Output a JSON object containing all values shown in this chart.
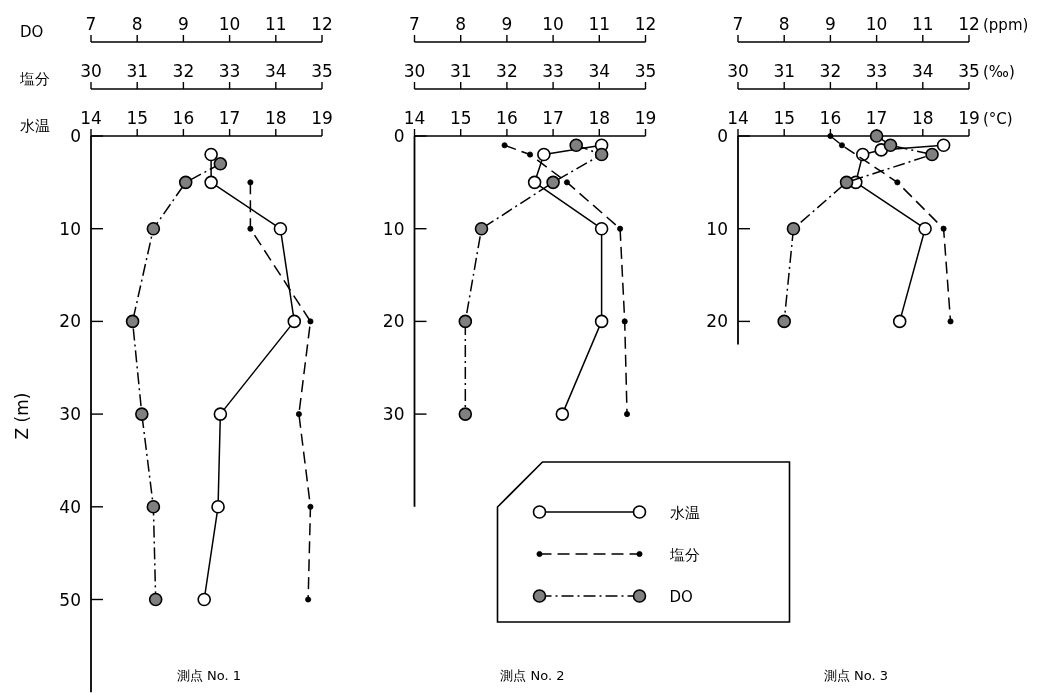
{
  "chart_data": [
    {
      "type": "line",
      "title": "測点 No. 1",
      "ylabel": "Z (m)",
      "xlabel": "水温",
      "x2label": "塩分",
      "xlim": [
        14,
        19
      ],
      "xticks": [
        14,
        15,
        16,
        17,
        18,
        19
      ],
      "x2lim": [
        30,
        35
      ],
      "x2ticks": [
        30,
        31,
        32,
        33,
        34,
        35
      ],
      "ylim": [
        60,
        0
      ],
      "yticks": [
        0,
        10,
        20,
        30,
        40,
        50
      ],
      "series": [
        {
          "marker": "circle",
          "line_style": "solid",
          "color": "#ffffff",
          "x": [
            16.6,
            16.6,
            18.1,
            18.4,
            16.8,
            16.75,
            16.45
          ],
          "values": [
            2,
            5,
            10,
            20,
            30,
            40,
            50
          ]
        },
        {
          "axis": "x2",
          "marker": "circle",
          "line_style": "dashed",
          "color": "#000000",
          "x": [
            33.45,
            33.45,
            34.75,
            34.5,
            34.75,
            34.7
          ],
          "values": [
            5,
            10,
            20,
            30,
            40,
            50
          ]
        }
      ]
    },
    {
      "type": "line",
      "xlabel": "DO",
      "tick_labels": "x",
      "xlim": [
        7,
        12
      ],
      "xticks": [
        7,
        8,
        9,
        10,
        11,
        12
      ],
      "ylim": [
        60,
        0
      ],
      "series": [
        {
          "marker": "circle",
          "line_style": "dashdot",
          "color": "#808080",
          "x": [
            9.8,
            9.05,
            8.35,
            7.9,
            8.1,
            8.35,
            8.4
          ],
          "values": [
            3,
            5,
            10,
            20,
            30,
            40,
            50
          ]
        }
      ]
    },
    {
      "type": "line",
      "title": "測点 No. 2",
      "legend": "bottom right",
      "xlim": [
        14,
        19
      ],
      "xticks": [
        14,
        15,
        16,
        17,
        18,
        19
      ],
      "x2lim": [
        30,
        35
      ],
      "x2ticks": [
        30,
        31,
        32,
        33,
        34,
        35
      ],
      "ylim": [
        40,
        0
      ],
      "yticks": [
        0,
        10,
        20,
        30
      ],
      "series": [
        {
          "name": "水温",
          "marker": "circle",
          "line_style": "solid",
          "color": "#ffffff",
          "x": [
            18.05,
            16.8,
            16.6,
            18.05,
            18.05,
            17.2
          ],
          "values": [
            1,
            2,
            5,
            10,
            20,
            30
          ]
        },
        {
          "name": "塩分",
          "axis": "x2",
          "marker": "circle",
          "line_style": "dashed",
          "color": "#000000",
          "x": [
            31.95,
            32.5,
            33.3,
            34.45,
            34.55,
            34.6
          ],
          "values": [
            1,
            2,
            5,
            10,
            20,
            30
          ]
        }
      ]
    },
    {
      "type": "line",
      "legend": "bottom right",
      "tick_labels": "x",
      "xlim": [
        7,
        12
      ],
      "xticks": [
        7,
        8,
        9,
        10,
        11,
        12
      ],
      "ylim": [
        40,
        0
      ],
      "series": [
        {
          "name": "DO",
          "marker": "circle",
          "line_style": "dashdot",
          "color": "#808080",
          "x": [
            10.5,
            11.05,
            10.0,
            8.45,
            8.1,
            8.1
          ],
          "values": [
            1,
            2,
            5,
            10,
            20,
            30
          ]
        }
      ]
    },
    {
      "type": "line",
      "title": "測点 No. 3",
      "xlabel": "(°C)",
      "x2label": "(‰)",
      "xlim": [
        14,
        19
      ],
      "xticks": [
        14,
        15,
        16,
        17,
        18,
        19
      ],
      "x2lim": [
        30,
        35
      ],
      "x2ticks": [
        30,
        31,
        32,
        33,
        34,
        35
      ],
      "ylim": [
        22.5,
        0
      ],
      "yticks": [
        0,
        10,
        20
      ],
      "series": [
        {
          "marker": "circle",
          "line_style": "solid",
          "color": "#ffffff",
          "x": [
            18.45,
            17.1,
            16.7,
            16.55,
            18.05,
            17.5
          ],
          "values": [
            1,
            1.5,
            2,
            5,
            10,
            20
          ]
        },
        {
          "axis": "x2",
          "marker": "circle",
          "line_style": "dashed",
          "color": "#000000",
          "x": [
            32.0,
            32.25,
            33.45,
            34.45,
            34.6
          ],
          "values": [
            0,
            1,
            5,
            10,
            20
          ]
        }
      ]
    },
    {
      "type": "line",
      "xlabel": "(ppm)",
      "tick_labels": "x",
      "xlim": [
        7,
        12
      ],
      "xticks": [
        7,
        8,
        9,
        10,
        11,
        12
      ],
      "ylim": [
        22.5,
        0
      ],
      "series": [
        {
          "marker": "circle",
          "line_style": "dashdot",
          "color": "#808080",
          "x": [
            10.0,
            10.3,
            11.2,
            9.35,
            8.2,
            8.0
          ],
          "values": [
            0,
            1,
            2,
            5,
            10,
            20
          ]
        }
      ]
    }
  ]
}
